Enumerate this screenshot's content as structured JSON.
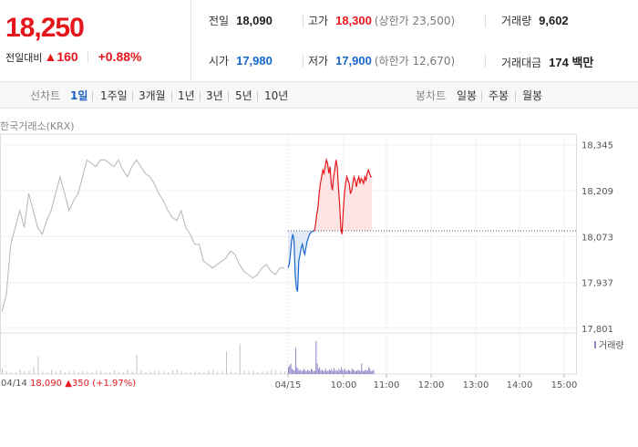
{
  "quote": {
    "price": "18,250",
    "change_label": "전일대비",
    "change_arrow": "▲",
    "change_value": "160",
    "change_pct": "+0.88%"
  },
  "stats": {
    "prev_close": {
      "label": "전일",
      "value": "18,090"
    },
    "high": {
      "label": "고가",
      "value": "18,300",
      "extra": "(상한가 23,500)"
    },
    "volume": {
      "label": "거래량",
      "value": "9,602"
    },
    "open": {
      "label": "시가",
      "value": "17,980"
    },
    "low": {
      "label": "저가",
      "value": "17,900",
      "extra": "(하한가 12,670)"
    },
    "turnover": {
      "label": "거래대금",
      "value": "174 백만"
    }
  },
  "tabs": {
    "line_label": "선차트",
    "line_items": [
      "1일",
      "1주일",
      "3개월",
      "1년",
      "3년",
      "5년",
      "10년"
    ],
    "line_active": 0,
    "candle_label": "봉차트",
    "candle_items": [
      "일봉",
      "주봉",
      "월봉"
    ]
  },
  "source": "한국거래소(KRX)",
  "colors": {
    "up": "#e4161b",
    "down": "#1767cc",
    "prev_day": "#b5b5b5",
    "fill": "#fde2e2"
  },
  "chart_data": {
    "type": "line",
    "ylim": [
      17790,
      18355
    ],
    "yticks": [
      18345,
      18209,
      18073,
      17937,
      17801
    ],
    "reference_price": 18090,
    "xticks": [
      "04/14",
      "04/15",
      "10:00",
      "11:00",
      "12:00",
      "13:00",
      "14:00",
      "15:00"
    ],
    "volume_legend": "거래량",
    "prev_day_summary": {
      "date": "04/14",
      "close": "18,090",
      "arrow": "▲",
      "change": "350",
      "pct": "(+1.97%)"
    },
    "series": [
      {
        "values": [
          17850,
          17900,
          18050,
          18100,
          18150,
          18100,
          18200,
          18150,
          18100,
          18080,
          18120,
          18150,
          18200,
          18250,
          18200,
          18150,
          18180,
          18200,
          18250,
          18300,
          18290,
          18280,
          18300,
          18300,
          18290,
          18280,
          18300,
          18270,
          18250,
          18280,
          18300,
          18280,
          18260,
          18250,
          18230,
          18200,
          18180,
          18150,
          18130,
          18120,
          18150,
          18100,
          18080,
          18050,
          18050,
          18000,
          17990,
          17980,
          17990,
          18000,
          18010,
          18030,
          18020,
          17990,
          17970,
          17960,
          17950,
          17960,
          17980,
          17990,
          17970,
          17960,
          17980,
          17980
        ]
      },
      {
        "values": [
          17980,
          17990,
          18020,
          18060,
          18080,
          18060,
          17960,
          17920,
          17910,
          18000,
          18020,
          18040,
          18050,
          18030,
          18020,
          18040,
          18060,
          18070,
          18080,
          18085,
          18088,
          18089,
          18089
        ]
      },
      {
        "values": [
          18090,
          18110,
          18140,
          18160,
          18200,
          18230,
          18250,
          18270,
          18260,
          18280,
          18300,
          18290,
          18260,
          18280,
          18230,
          18210,
          18250,
          18270,
          18300,
          18280,
          18220,
          18170,
          18100,
          18080,
          18150,
          18200,
          18230,
          18250,
          18240,
          18230,
          18200,
          18210,
          18230,
          18250,
          18240,
          18220,
          18240,
          18250,
          18230,
          18245,
          18240,
          18230,
          18250,
          18240,
          18260,
          18270,
          18260,
          18250,
          18250
        ]
      }
    ],
    "volumes_prev": [
      6,
      3,
      2,
      2,
      5,
      3,
      4,
      8,
      20,
      3,
      2,
      5,
      3,
      4,
      2,
      3,
      4,
      2,
      3,
      3,
      2,
      4,
      3,
      2,
      2,
      4,
      3,
      2,
      5,
      3,
      22,
      4,
      2,
      3,
      4,
      3,
      3,
      2,
      4,
      5,
      3,
      2,
      2,
      3,
      3,
      2,
      4,
      5,
      3,
      3,
      26,
      3,
      2,
      35,
      4,
      3,
      4,
      2,
      3,
      3,
      5,
      4,
      3,
      3
    ],
    "volumes_today": [
      8,
      10,
      12,
      6,
      5,
      4,
      30,
      8,
      6,
      4,
      5,
      3,
      4,
      6,
      4,
      3,
      5,
      4,
      3,
      6,
      5,
      3,
      4,
      38,
      12,
      6,
      8,
      4,
      5,
      3,
      4,
      6,
      3,
      4,
      5,
      4,
      6,
      3,
      7,
      4,
      5,
      3,
      6,
      4,
      8,
      5,
      4,
      6,
      3,
      4,
      5,
      4,
      3,
      6,
      5,
      4,
      3,
      4,
      5,
      4,
      3,
      12,
      4,
      3,
      5,
      4,
      4,
      8,
      6,
      3,
      4,
      5
    ]
  }
}
